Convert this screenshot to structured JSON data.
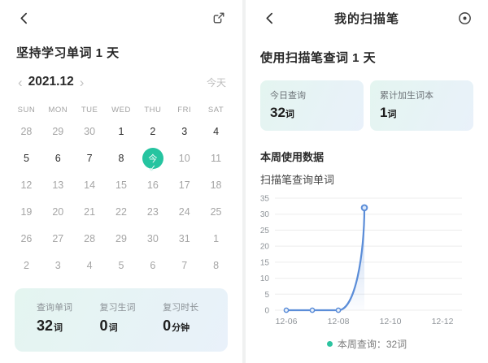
{
  "colors": {
    "accent": "#25c4a0",
    "line": "#5b8dd8",
    "card_grad_a": "#e4f5f0",
    "card_grad_b": "#e9f1fa"
  },
  "icons": {
    "left_back": "back-chevron-icon",
    "left_action": "share-icon",
    "right_back": "back-chevron-icon",
    "right_action": "settings-circle-dot-icon",
    "today_badge": "checkmark-icon",
    "legend_marker": "legend-dot"
  },
  "left": {
    "title": "坚持学习单词 1 天",
    "month_nav": {
      "prev": "‹",
      "month": "2021.12",
      "next": "›",
      "today_label": "今天"
    },
    "calendar": {
      "weekdays": [
        "SUN",
        "MON",
        "TUE",
        "WED",
        "THU",
        "FRI",
        "SAT"
      ],
      "days": [
        {
          "d": "28",
          "s": "m"
        },
        {
          "d": "29",
          "s": "m"
        },
        {
          "d": "30",
          "s": "m"
        },
        {
          "d": "1",
          "s": "n"
        },
        {
          "d": "2",
          "s": "n"
        },
        {
          "d": "3",
          "s": "n"
        },
        {
          "d": "4",
          "s": "n"
        },
        {
          "d": "5",
          "s": "n"
        },
        {
          "d": "6",
          "s": "n"
        },
        {
          "d": "7",
          "s": "n"
        },
        {
          "d": "8",
          "s": "n"
        },
        {
          "d": "今",
          "s": "t"
        },
        {
          "d": "10",
          "s": "m"
        },
        {
          "d": "11",
          "s": "m"
        },
        {
          "d": "12",
          "s": "m"
        },
        {
          "d": "13",
          "s": "m"
        },
        {
          "d": "14",
          "s": "m"
        },
        {
          "d": "15",
          "s": "m"
        },
        {
          "d": "16",
          "s": "m"
        },
        {
          "d": "17",
          "s": "m"
        },
        {
          "d": "18",
          "s": "m"
        },
        {
          "d": "19",
          "s": "m"
        },
        {
          "d": "20",
          "s": "m"
        },
        {
          "d": "21",
          "s": "m"
        },
        {
          "d": "22",
          "s": "m"
        },
        {
          "d": "23",
          "s": "m"
        },
        {
          "d": "24",
          "s": "m"
        },
        {
          "d": "25",
          "s": "m"
        },
        {
          "d": "26",
          "s": "m"
        },
        {
          "d": "27",
          "s": "m"
        },
        {
          "d": "28",
          "s": "m"
        },
        {
          "d": "29",
          "s": "m"
        },
        {
          "d": "30",
          "s": "m"
        },
        {
          "d": "31",
          "s": "m"
        },
        {
          "d": "1",
          "s": "m"
        },
        {
          "d": "2",
          "s": "m"
        },
        {
          "d": "3",
          "s": "m"
        },
        {
          "d": "4",
          "s": "m"
        },
        {
          "d": "5",
          "s": "m"
        },
        {
          "d": "6",
          "s": "m"
        },
        {
          "d": "7",
          "s": "m"
        },
        {
          "d": "8",
          "s": "m"
        }
      ]
    },
    "stats": [
      {
        "label": "查询单词",
        "value": "32",
        "unit": "词"
      },
      {
        "label": "复习生词",
        "value": "0",
        "unit": "词"
      },
      {
        "label": "复习时长",
        "value": "0",
        "unit": "分钟"
      }
    ]
  },
  "right": {
    "nav_title": "我的扫描笔",
    "section_title": "使用扫描笔查词 1 天",
    "cards": [
      {
        "label": "今日查询",
        "value": "32",
        "unit": "词"
      },
      {
        "label": "累计加生词本",
        "value": "1",
        "unit": "词"
      }
    ],
    "week_heading": "本周使用数据",
    "chart_title": "扫描笔查询单词",
    "legend_text": "本周查询：32词"
  },
  "chart_data": {
    "type": "line",
    "title": "扫描笔查询单词",
    "x": [
      "12-06",
      "12-07",
      "12-08",
      "12-09"
    ],
    "values": [
      0,
      0,
      0,
      32
    ],
    "x_axis_labels": [
      "12-06",
      "12-08",
      "12-10",
      "12-12"
    ],
    "x_domain_days": 7,
    "ylim": [
      0,
      35
    ],
    "y_ticks": [
      0,
      5,
      10,
      15,
      20,
      25,
      30,
      35
    ],
    "grid": true,
    "line_color": "#5b8dd8",
    "area_under_spike": true,
    "legend": [
      {
        "label": "本周查询：32词",
        "color": "#2cc3a0"
      }
    ],
    "legend_position": "bottom"
  }
}
